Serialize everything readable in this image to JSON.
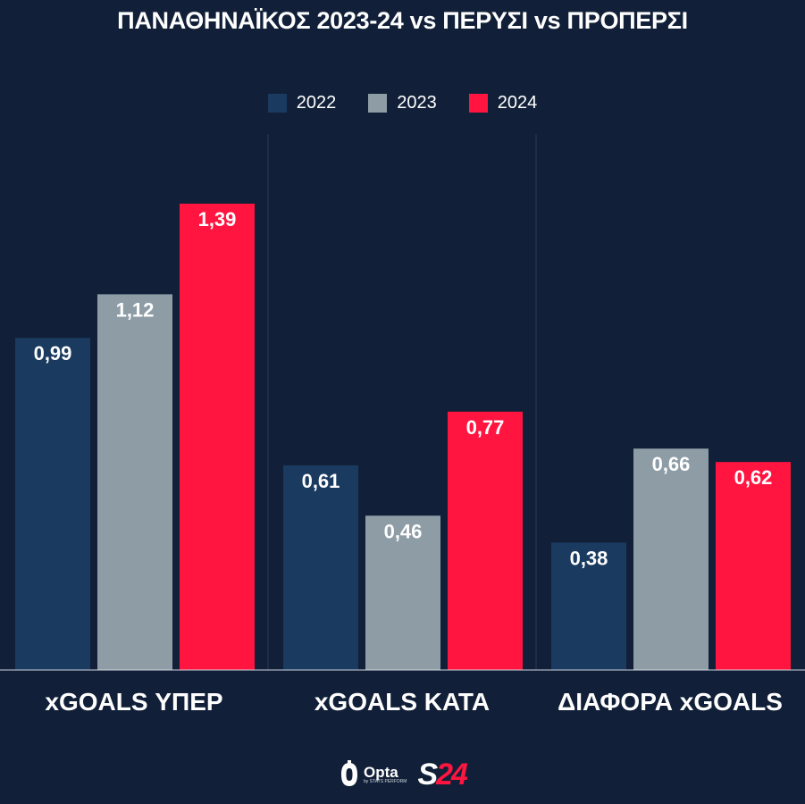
{
  "chart_data": {
    "type": "bar",
    "title": "ΠΑΝΑΘΗΝΑΪΚΟΣ 2023-24 vs ΠΕΡΥΣΙ vs ΠΡΟΠΕΡΣΙ",
    "categories": [
      "xGOALS ΥΠΕΡ",
      "xGOALS ΚΑΤΑ",
      "ΔΙΑΦΟΡΑ xGOALS"
    ],
    "series": [
      {
        "name": "2022",
        "color": "#1a3a60",
        "values": [
          0.99,
          0.61,
          0.38
        ],
        "labels": [
          "0,99",
          "0,61",
          "0,38"
        ]
      },
      {
        "name": "2023",
        "color": "#8e9ca5",
        "values": [
          1.12,
          0.46,
          0.66
        ],
        "labels": [
          "1,12",
          "0,46",
          "0,66"
        ]
      },
      {
        "name": "2024",
        "color": "#ff1540",
        "values": [
          1.39,
          0.77,
          0.62
        ],
        "labels": [
          "1,39",
          "0,77",
          "0,62"
        ]
      }
    ],
    "ylim": [
      0,
      1.39
    ],
    "grid": false,
    "legend": "top-center"
  },
  "colors": {
    "background": "#112038",
    "separator": "#2a3a52",
    "baseline": "#cfd6e0",
    "text": "#ffffff"
  },
  "footer": {
    "opta": {
      "icon": "opta-logo-icon",
      "name": "Opta",
      "sub": "by STATS PERFORM"
    },
    "brand": {
      "s": "S",
      "num": "24"
    }
  }
}
